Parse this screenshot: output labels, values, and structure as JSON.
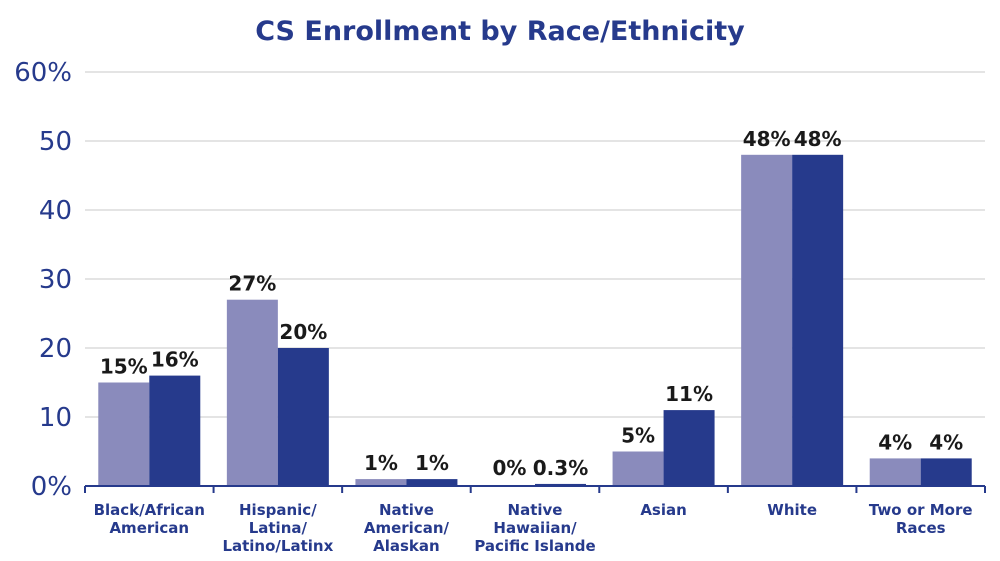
{
  "chart_data": {
    "type": "bar",
    "title": "CS Enrollment by Race/Ethnicity",
    "xlabel": "",
    "ylabel": "",
    "ylim": [
      0,
      60
    ],
    "yticks": [
      "0%",
      "10",
      "20",
      "30",
      "40",
      "50",
      "60%"
    ],
    "grid": true,
    "categories": [
      [
        "Black/African",
        "American"
      ],
      [
        "Hispanic/",
        "Latina/",
        "Latino/Latinx"
      ],
      [
        "Native",
        "American/",
        "Alaskan"
      ],
      [
        "Native",
        "Hawaiian/",
        "Pacific Islande"
      ],
      [
        "Asian"
      ],
      [
        "White"
      ],
      [
        "Two or More",
        "Races"
      ]
    ],
    "series": [
      {
        "color": "#8a8bbc",
        "values": [
          15,
          27,
          1,
          0,
          5,
          48,
          4
        ],
        "labels": [
          "15%",
          "27%",
          "1%",
          "0%",
          "5%",
          "48%",
          "4%"
        ]
      },
      {
        "color": "#263a8c",
        "values": [
          16,
          20,
          1,
          0.3,
          11,
          48,
          4
        ],
        "labels": [
          "16%",
          "20%",
          "1%",
          "0.3%",
          "11%",
          "48%",
          "4%"
        ]
      }
    ]
  }
}
